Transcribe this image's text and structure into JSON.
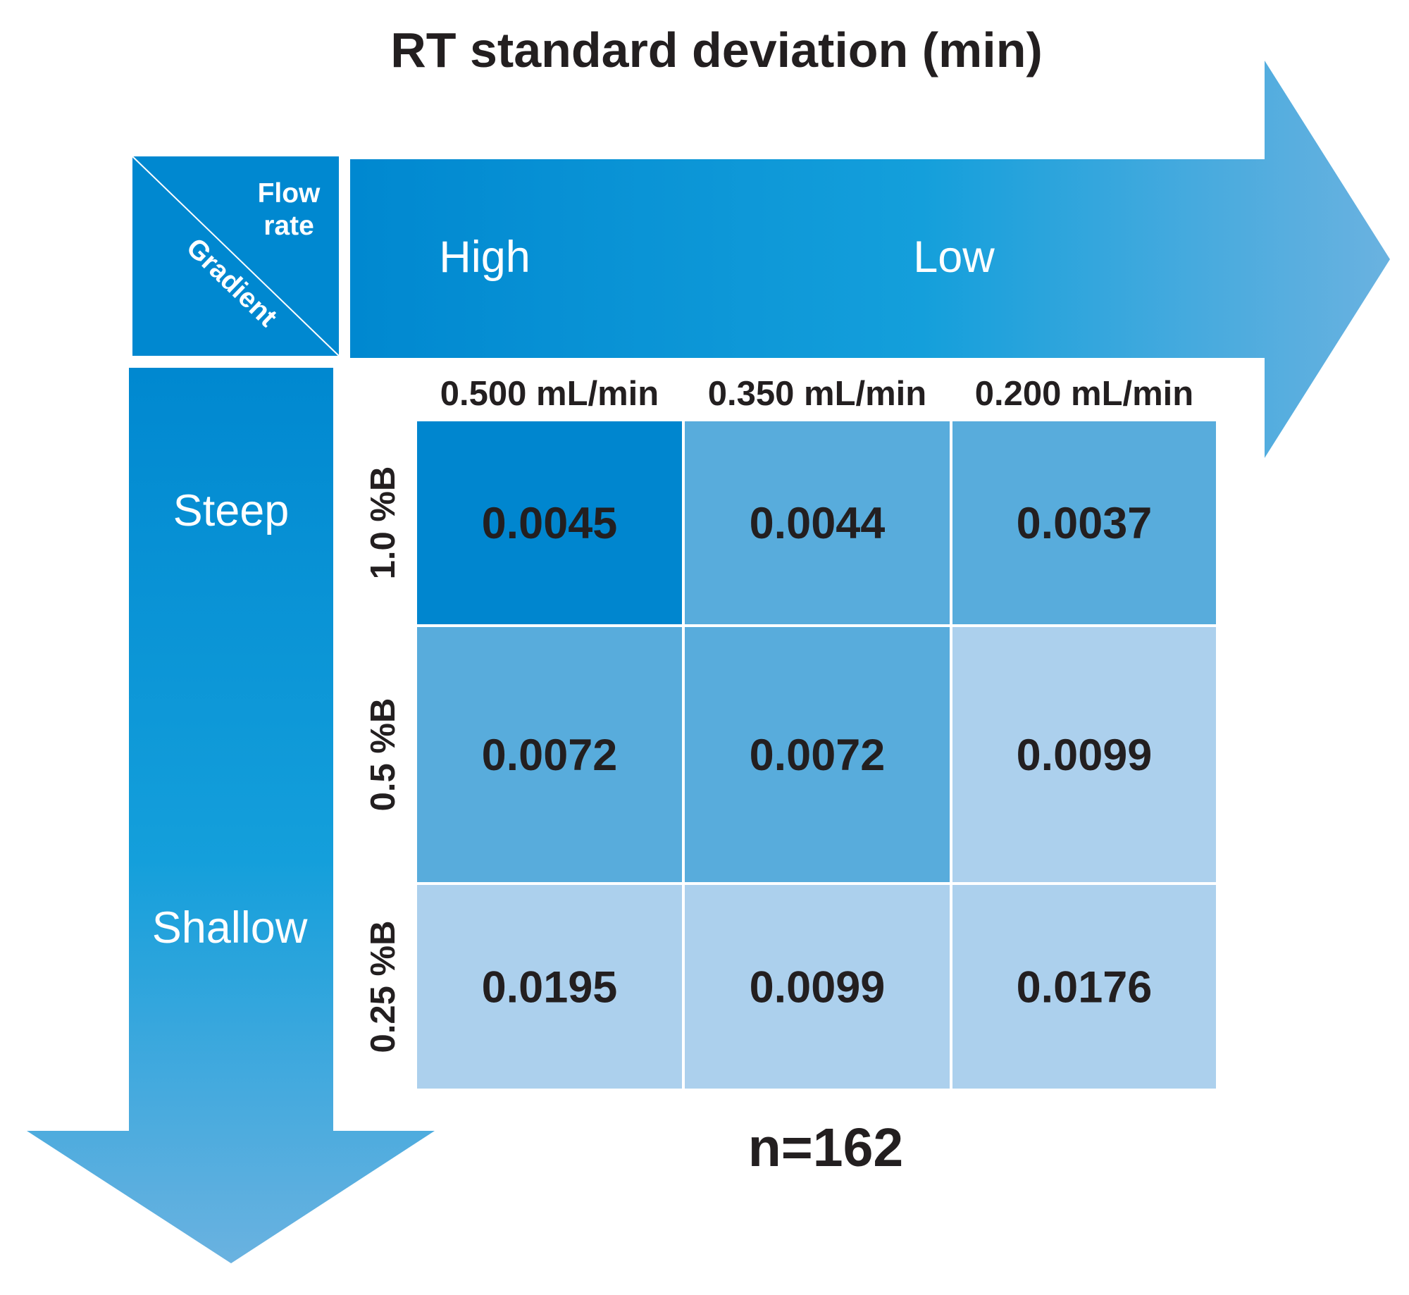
{
  "title": "RT standard deviation (min)",
  "corner": {
    "top_label_line1": "Flow",
    "top_label_line2": "rate",
    "bottom_label": "Gradient"
  },
  "flow_arrow": {
    "left_label": "High",
    "right_label": "Low"
  },
  "gradient_arrow": {
    "top_label": "Steep",
    "bottom_label": "Shallow"
  },
  "note": "n=162",
  "colors": {
    "dark_cell": "#0086cf",
    "mid_cell": "#58acdc",
    "light_cell": "#acd0ed",
    "arrow_start": "#0088d0",
    "arrow_end": "#6ab2e0"
  },
  "chart_data": {
    "type": "heatmap",
    "title": "RT standard deviation (min)",
    "columns": [
      "0.500 mL/min",
      "0.350 mL/min",
      "0.200 mL/min"
    ],
    "rows": [
      "1.0 %B",
      "0.5 %B",
      "0.25 %B"
    ],
    "values": [
      [
        "0.0045",
        "0.0044",
        "0.0037"
      ],
      [
        "0.0072",
        "0.0072",
        "0.0099"
      ],
      [
        "0.0195",
        "0.0099",
        "0.0176"
      ]
    ],
    "shade_levels": [
      [
        "dark",
        "mid",
        "mid"
      ],
      [
        "mid",
        "mid",
        "light"
      ],
      [
        "light",
        "light",
        "light"
      ]
    ],
    "xlabel": "Flow rate",
    "ylabel": "Gradient"
  }
}
